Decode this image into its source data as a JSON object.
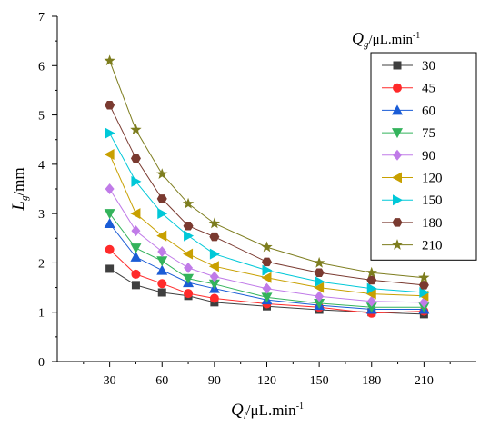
{
  "chart_data": {
    "type": "line",
    "title": "",
    "xlabel": {
      "main": "Q",
      "sub": "l",
      "unit": "/μL.min",
      "sup": "-1"
    },
    "ylabel": {
      "main": "L",
      "sub": "g",
      "unit": "/mm"
    },
    "xlim": [
      0,
      240
    ],
    "ylim": [
      0,
      7
    ],
    "x_ticks": [
      30,
      60,
      90,
      120,
      150,
      180,
      210
    ],
    "y_ticks": [
      0,
      1,
      2,
      3,
      4,
      5,
      6,
      7
    ],
    "x": [
      30,
      45,
      60,
      75,
      90,
      120,
      150,
      180,
      210
    ],
    "legend": {
      "title_main": "Q",
      "title_sub": "g",
      "title_unit": "/μL.min",
      "title_sup": "-1",
      "position": "top-right"
    },
    "grid": false,
    "series": [
      {
        "name": "30",
        "color": "#3f3f3f",
        "marker": "square",
        "values": [
          1.88,
          1.55,
          1.4,
          1.33,
          1.2,
          1.12,
          1.05,
          1.0,
          0.96
        ]
      },
      {
        "name": "45",
        "color": "#ff2a2a",
        "marker": "circle",
        "values": [
          2.27,
          1.77,
          1.58,
          1.38,
          1.28,
          1.17,
          1.1,
          0.98,
          1.02
        ]
      },
      {
        "name": "60",
        "color": "#1a5cd6",
        "marker": "triangle-up",
        "values": [
          2.8,
          2.12,
          1.85,
          1.6,
          1.48,
          1.25,
          1.14,
          1.06,
          1.06
        ]
      },
      {
        "name": "75",
        "color": "#33b35b",
        "marker": "triangle-down",
        "values": [
          3.0,
          2.3,
          2.04,
          1.68,
          1.57,
          1.3,
          1.18,
          1.1,
          1.1
        ]
      },
      {
        "name": "90",
        "color": "#c07be8",
        "marker": "diamond",
        "values": [
          3.5,
          2.65,
          2.23,
          1.9,
          1.72,
          1.48,
          1.32,
          1.22,
          1.2
        ]
      },
      {
        "name": "120",
        "color": "#c8a000",
        "marker": "triangle-left",
        "values": [
          4.2,
          3.0,
          2.55,
          2.18,
          1.93,
          1.7,
          1.5,
          1.37,
          1.33
        ]
      },
      {
        "name": "150",
        "color": "#00c8d8",
        "marker": "triangle-right",
        "values": [
          4.63,
          3.65,
          3.0,
          2.55,
          2.18,
          1.85,
          1.62,
          1.48,
          1.4
        ]
      },
      {
        "name": "180",
        "color": "#7a3a30",
        "marker": "hexagon",
        "values": [
          5.2,
          4.12,
          3.3,
          2.75,
          2.53,
          2.02,
          1.8,
          1.65,
          1.55
        ]
      },
      {
        "name": "210",
        "color": "#7d7d1e",
        "marker": "star",
        "values": [
          6.1,
          4.7,
          3.8,
          3.2,
          2.8,
          2.32,
          2.0,
          1.8,
          1.7
        ]
      }
    ]
  }
}
